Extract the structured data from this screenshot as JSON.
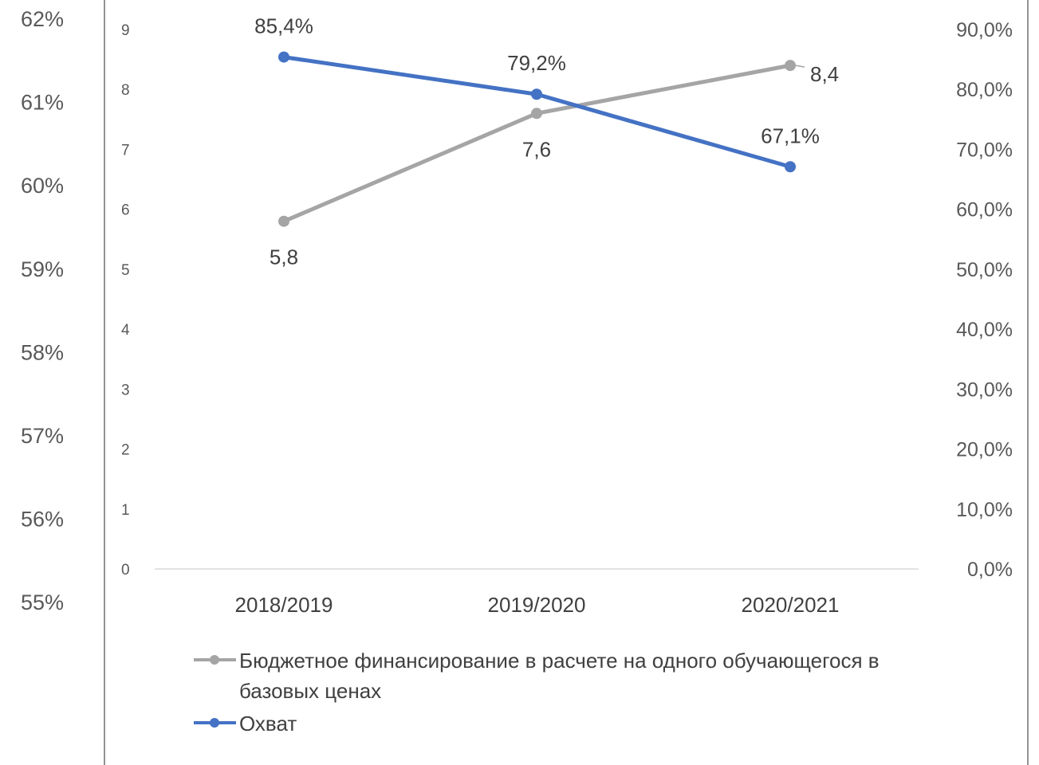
{
  "chart_data": {
    "type": "line",
    "categories": [
      "2018/2019",
      "2019/2020",
      "2020/2021"
    ],
    "outer_axis_ticks": [
      "62%",
      "61%",
      "60%",
      "59%",
      "58%",
      "57%",
      "56%",
      "55%"
    ],
    "left_axis_ticks": [
      "0",
      "1",
      "2",
      "3",
      "4",
      "5",
      "6",
      "7",
      "8",
      "9"
    ],
    "right_axis_ticks": [
      "0,0%",
      "10,0%",
      "20,0%",
      "30,0%",
      "40,0%",
      "50,0%",
      "60,0%",
      "70,0%",
      "80,0%",
      "90,0%"
    ],
    "ylim_left": [
      0,
      9
    ],
    "ylim_right": [
      0,
      90
    ],
    "series": [
      {
        "name": "Бюджетное финансирование в расчете на одного обучающегося в базовых ценах",
        "axis": "left",
        "values": [
          5.8,
          7.6,
          8.4
        ],
        "labels": [
          "5,8",
          "7,6",
          "8,4"
        ],
        "color": "#a5a5a5"
      },
      {
        "name": "Охват",
        "axis": "right",
        "values": [
          85.4,
          79.2,
          67.1
        ],
        "labels": [
          "85,4%",
          "79,2%",
          "67,1%"
        ],
        "color": "#4472c4"
      }
    ],
    "legend_lines": [
      "Бюджетное финансирование в расчете на одного обучающегося в",
      "базовых ценах"
    ],
    "legend_position": "bottom",
    "grid": false
  }
}
